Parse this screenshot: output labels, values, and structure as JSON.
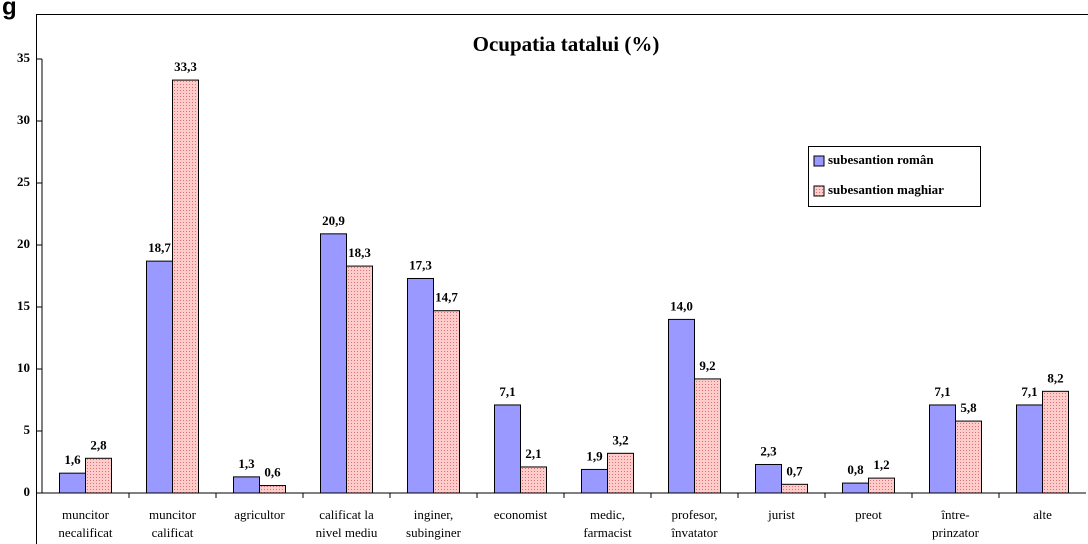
{
  "fragment": "g",
  "chart_data": {
    "type": "bar",
    "title": "Ocupatia tatalui  (%)",
    "categories": [
      [
        "muncitor",
        "necalificat"
      ],
      [
        "muncitor",
        "calificat"
      ],
      [
        "agricultor"
      ],
      [
        "calificat la",
        "nivel mediu"
      ],
      [
        "inginer,",
        "subinginer"
      ],
      [
        "economist"
      ],
      [
        "medic,",
        "farmacist"
      ],
      [
        "profesor,",
        "învatator"
      ],
      [
        "jurist"
      ],
      [
        "preot"
      ],
      [
        "între-",
        "prinzator"
      ],
      [
        "alte"
      ]
    ],
    "series": [
      {
        "name": "subesantion român",
        "color": "#9999ff",
        "values": [
          1.6,
          18.7,
          1.3,
          20.9,
          17.3,
          7.1,
          1.9,
          14.0,
          2.3,
          0.8,
          7.1,
          7.1
        ],
        "value_labels": [
          "1,6",
          "18,7",
          "1,3",
          "20,9",
          "17,3",
          "7,1",
          "1,9",
          "14,0",
          "2,3",
          "0,8",
          "7,1",
          "7,1"
        ]
      },
      {
        "name": "subesantion maghiar",
        "color": "#ffcccc",
        "values": [
          2.8,
          33.3,
          0.6,
          18.3,
          14.7,
          2.1,
          3.2,
          9.2,
          0.7,
          1.2,
          5.8,
          8.2
        ],
        "value_labels": [
          "2,8",
          "33,3",
          "0,6",
          "18,3",
          "14,7",
          "2,1",
          "3,2",
          "9,2",
          "0,7",
          "1,2",
          "5,8",
          "8,2"
        ]
      }
    ],
    "ylim": [
      0,
      35
    ],
    "yticks": [
      0,
      5,
      10,
      15,
      20,
      25,
      30,
      35
    ],
    "grid": false,
    "legend": "right"
  }
}
